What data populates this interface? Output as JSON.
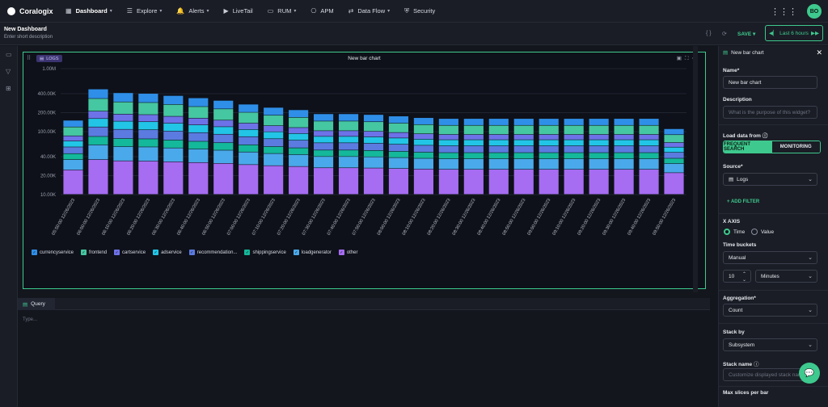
{
  "brand": "Coralogix",
  "nav": [
    {
      "label": "Dashboard",
      "icon": "grid-icon",
      "caret": true
    },
    {
      "label": "Explore",
      "icon": "list-icon",
      "caret": true
    },
    {
      "label": "Alerts",
      "icon": "bell-icon",
      "caret": true
    },
    {
      "label": "LiveTail",
      "icon": "play-icon",
      "caret": false
    },
    {
      "label": "RUM",
      "icon": "monitor-icon",
      "caret": true
    },
    {
      "label": "APM",
      "icon": "apm-icon",
      "caret": false
    },
    {
      "label": "Data Flow",
      "icon": "dataflow-icon",
      "caret": true
    },
    {
      "label": "Security",
      "icon": "shield-icon",
      "caret": false
    }
  ],
  "user": {
    "initials": "BO",
    "color": "#3ec98e"
  },
  "dashboard": {
    "title": "New Dashboard",
    "description": "Enter short description",
    "save_label": "SAVE",
    "time_label": "Last 6 hours"
  },
  "widget": {
    "source_chip": "LOGS",
    "title": "New bar chart"
  },
  "chart_data": {
    "type": "bar",
    "stacked": true,
    "y_scale": "log",
    "ylim": [
      10000,
      1000000
    ],
    "y_ticks": [
      "10.00K",
      "20.00K",
      "40.00K",
      "100.00K",
      "200.00K",
      "400.00K",
      "1.00M"
    ],
    "categories": [
      "05:50:00 12/26/2023",
      "06:00:00 12/26/2023",
      "06:10:00 12/26/2023",
      "06:20:00 12/26/2023",
      "06:30:00 12/26/2023",
      "06:40:00 12/26/2023",
      "06:50:00 12/26/2023",
      "07:00:00 12/26/2023",
      "07:10:00 12/26/2023",
      "07:20:00 12/26/2023",
      "07:30:00 12/26/2023",
      "07:40:00 12/26/2023",
      "07:50:00 12/26/2023",
      "08:00:00 12/26/2023",
      "08:10:00 12/26/2023",
      "08:20:00 12/26/2023",
      "08:30:00 12/26/2023",
      "08:40:00 12/26/2023",
      "08:50:00 12/26/2023",
      "09:00:00 12/26/2023",
      "09:10:00 12/26/2023",
      "09:20:00 12/26/2023",
      "09:30:00 12/26/2023",
      "09:40:00 12/26/2023",
      "09:50:00 12/26/2023"
    ],
    "totals": [
      150000,
      470000,
      410000,
      400000,
      370000,
      340000,
      310000,
      270000,
      240000,
      220000,
      190000,
      190000,
      185000,
      175000,
      165000,
      160000,
      160000,
      160000,
      160000,
      160000,
      160000,
      160000,
      160000,
      160000,
      110000
    ],
    "series": [
      {
        "name": "currencyservice",
        "color": "#2f8fe8"
      },
      {
        "name": "frontend",
        "color": "#45c7a1"
      },
      {
        "name": "cartservice",
        "color": "#6e72e8"
      },
      {
        "name": "adservice",
        "color": "#22c5e6"
      },
      {
        "name": "recommendation...",
        "color": "#5b7be0"
      },
      {
        "name": "shippingservice",
        "color": "#14b89a"
      },
      {
        "name": "loadgenerator",
        "color": "#4aa9ea"
      },
      {
        "name": "other",
        "color": "#a66cf2"
      }
    ],
    "legend_position": "bottom-left"
  },
  "panel": {
    "header": "New bar chart",
    "name_label": "Name*",
    "name_value": "New bar chart",
    "description_label": "Description",
    "description_placeholder": "What is the purpose of this widget?",
    "load_from_label": "Load data from",
    "load_options": [
      "FREQUENT SEARCH",
      "MONITORING"
    ],
    "source_label": "Source*",
    "source_value": "Logs",
    "add_filter": "ADD FILTER",
    "xaxis_label": "X AXIS",
    "xaxis_options": [
      "Time",
      "Value"
    ],
    "time_buckets_label": "Time buckets",
    "time_buckets_value": "Manual",
    "bucket_count": "10",
    "bucket_unit": "Minutes",
    "aggregation_label": "Aggregation*",
    "aggregation_value": "Count",
    "stack_by_label": "Stack by",
    "stack_by_value": "Subsystem",
    "stack_name_label": "Stack name",
    "stack_name_placeholder": "Customize displayed stack name",
    "max_slices_label": "Max slices per bar"
  },
  "query": {
    "tab_label": "Query",
    "placeholder": "Type..."
  }
}
